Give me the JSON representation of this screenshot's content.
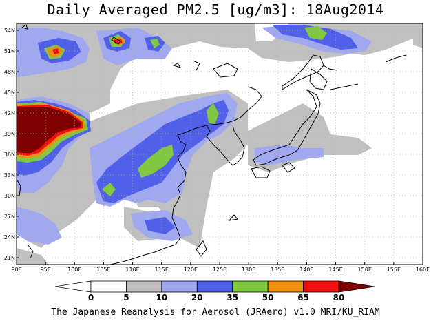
{
  "title": "Daily Averaged PM2.5 [ug/m3]: 18Aug2014",
  "footer": "The Japanese Reanalysis for Aerosol (JRAero) v1.0 MRI/KU_RIAM",
  "map": {
    "lon_range": [
      90,
      160
    ],
    "lat_range": [
      20,
      55
    ],
    "lon_ticks": [
      "90E",
      "95E",
      "100E",
      "105E",
      "110E",
      "115E",
      "120E",
      "125E",
      "130E",
      "135E",
      "140E",
      "145E",
      "150E",
      "155E",
      "160E"
    ],
    "lat_ticks": [
      "21N",
      "24N",
      "27N",
      "30N",
      "33N",
      "36N",
      "39N",
      "42N",
      "45N",
      "48N",
      "51N",
      "54N"
    ],
    "gridlines": "dotted"
  },
  "colorbar": {
    "labels": [
      "0",
      "5",
      "10",
      "20",
      "35",
      "50",
      "65",
      "80"
    ],
    "colors": [
      "#ffffff",
      "#c0c0c0",
      "#a0a8f0",
      "#5060e8",
      "#80c840",
      "#f09010",
      "#f01010",
      "#800000"
    ]
  },
  "colors": {
    "low": "#c0c0c0",
    "light_blue": "#a0a8f0",
    "blue": "#5060e8",
    "green": "#80c840",
    "orange": "#f09010",
    "red": "#f01010",
    "darkred": "#800000"
  }
}
